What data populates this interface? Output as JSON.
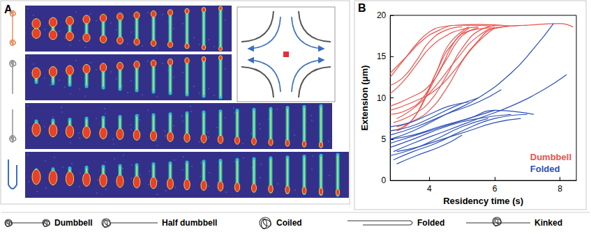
{
  "image_panel": {
    "panel_label": "A"
  },
  "chart_data": {
    "type": "line",
    "panel_label": "B",
    "x_label": "Residency time (s)",
    "y_label": "Extension (μm)",
    "xlim": [
      2.8,
      8.5
    ],
    "xticks": [
      4,
      6,
      8
    ],
    "ylim": [
      0,
      20
    ],
    "yticks": [
      0,
      5,
      10,
      15,
      20
    ],
    "grid": false,
    "legend": "lower right",
    "series": [
      {
        "name": "Dumbbell",
        "color": "#e8544e",
        "traces": [
          {
            "x": [
              2.8,
              3.2,
              3.6,
              4.0,
              4.4,
              5.0,
              6.0
            ],
            "y": [
              12.5,
              14.5,
              16.5,
              18.0,
              18.6,
              18.8,
              18.7
            ]
          },
          {
            "x": [
              2.8,
              3.3,
              3.8,
              4.3,
              4.8,
              5.5,
              6.5
            ],
            "y": [
              13.0,
              15.0,
              17.0,
              18.2,
              18.8,
              18.9,
              18.7
            ]
          },
          {
            "x": [
              2.8,
              3.2,
              3.6,
              4.0,
              4.5,
              5.0
            ],
            "y": [
              11.5,
              12.5,
              14.5,
              16.8,
              18.2,
              18.6
            ]
          },
          {
            "x": [
              2.8,
              3.4,
              4.0,
              4.5,
              5.0,
              5.5
            ],
            "y": [
              9.0,
              10.0,
              11.5,
              14.5,
              17.5,
              18.5
            ]
          },
          {
            "x": [
              2.8,
              3.3,
              3.8,
              4.2,
              4.6,
              5.2
            ],
            "y": [
              8.0,
              8.5,
              10.0,
              13.0,
              16.5,
              18.6
            ]
          },
          {
            "x": [
              2.9,
              3.5,
              4.0,
              4.5,
              5.0,
              5.6,
              6.2
            ],
            "y": [
              7.0,
              8.0,
              9.5,
              12.5,
              16.0,
              18.3,
              18.8
            ]
          },
          {
            "x": [
              3.0,
              3.5,
              4.0,
              4.5,
              5.2,
              6.0
            ],
            "y": [
              6.5,
              7.2,
              8.5,
              11.0,
              15.5,
              18.5
            ]
          },
          {
            "x": [
              2.8,
              3.2,
              3.6,
              4.0,
              4.5,
              5.0,
              5.5
            ],
            "y": [
              10.5,
              12.0,
              14.0,
              16.0,
              17.5,
              18.3,
              18.6
            ]
          },
          {
            "x": [
              2.8,
              3.5,
              4.2,
              4.8,
              5.4,
              6.0,
              7.0
            ],
            "y": [
              8.5,
              9.5,
              11.0,
              13.5,
              16.5,
              18.4,
              18.8
            ]
          },
          {
            "x": [
              3.0,
              3.6,
              4.2,
              4.8,
              5.5,
              6.2,
              7.0,
              8.0,
              8.4
            ],
            "y": [
              7.5,
              9.0,
              11.5,
              14.5,
              17.5,
              18.6,
              18.8,
              19.0,
              18.6
            ]
          },
          {
            "x": [
              2.8,
              3.2,
              3.6,
              4.0,
              4.4,
              4.8,
              5.2
            ],
            "y": [
              6.0,
              6.5,
              8.0,
              11.0,
              14.0,
              17.0,
              18.4
            ]
          },
          {
            "x": [
              3.0,
              3.4,
              3.8,
              4.2,
              4.7,
              5.3,
              6.0
            ],
            "y": [
              6.0,
              7.0,
              9.5,
              13.0,
              16.5,
              18.2,
              18.5
            ]
          }
        ]
      },
      {
        "name": "Folded",
        "color": "#2b4fb8",
        "traces": [
          {
            "x": [
              2.8,
              3.5,
              4.5,
              5.5,
              6.5,
              7.2,
              7.8
            ],
            "y": [
              5.0,
              6.0,
              8.0,
              10.0,
              13.0,
              16.0,
              19.0
            ]
          },
          {
            "x": [
              2.9,
              3.5,
              4.5,
              5.5,
              6.5,
              7.5,
              8.2
            ],
            "y": [
              3.5,
              4.5,
              6.0,
              7.5,
              9.0,
              11.0,
              12.8
            ]
          },
          {
            "x": [
              2.8,
              3.5,
              4.5,
              5.5,
              6.5
            ],
            "y": [
              4.0,
              5.0,
              6.5,
              7.5,
              8.0
            ]
          },
          {
            "x": [
              2.8,
              3.6,
              4.5,
              5.5,
              6.2
            ],
            "y": [
              5.5,
              6.5,
              8.0,
              9.5,
              11.0
            ]
          },
          {
            "x": [
              2.8,
              3.5,
              4.2,
              5.0,
              5.8
            ],
            "y": [
              3.0,
              3.8,
              5.0,
              6.5,
              7.5
            ]
          },
          {
            "x": [
              2.9,
              3.5,
              4.2,
              5.0,
              6.0,
              7.0
            ],
            "y": [
              2.5,
              3.5,
              4.5,
              6.0,
              7.5,
              8.0
            ]
          },
          {
            "x": [
              2.8,
              3.4,
              4.0,
              4.8,
              5.5
            ],
            "y": [
              6.0,
              6.5,
              7.5,
              9.0,
              10.0
            ]
          },
          {
            "x": [
              2.8,
              3.6,
              4.4,
              5.2,
              6.0
            ],
            "y": [
              4.5,
              5.5,
              6.5,
              7.5,
              8.5
            ]
          },
          {
            "x": [
              3.0,
              3.6,
              4.4,
              5.2,
              6.0,
              6.8
            ],
            "y": [
              3.5,
              4.0,
              5.0,
              6.0,
              7.0,
              7.5
            ]
          },
          {
            "x": [
              2.8,
              3.4,
              4.0,
              4.6,
              5.2
            ],
            "y": [
              6.5,
              7.0,
              8.0,
              9.0,
              9.5
            ]
          },
          {
            "x": [
              2.8,
              3.5,
              4.3,
              5.2,
              6.0,
              7.2
            ],
            "y": [
              5.0,
              5.5,
              6.5,
              7.5,
              8.5,
              8.0
            ]
          },
          {
            "x": [
              3.0,
              3.6,
              4.4,
              5.0
            ],
            "y": [
              2.0,
              3.0,
              4.2,
              5.5
            ]
          }
        ]
      }
    ]
  },
  "shape_key": [
    "Dumbbell",
    "Half dumbbell",
    "Coiled",
    "Folded",
    "Kinked"
  ]
}
